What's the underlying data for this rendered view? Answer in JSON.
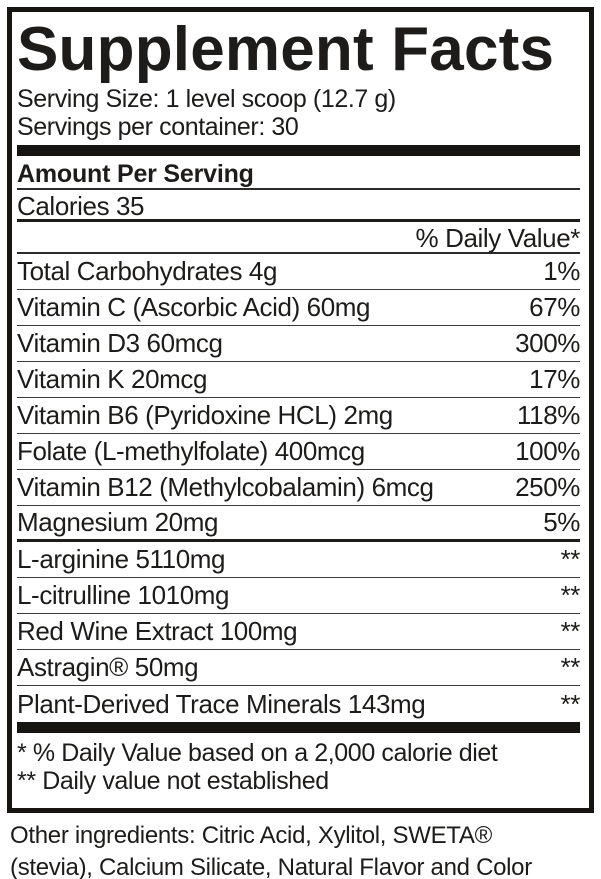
{
  "label": {
    "title": "Supplement Facts",
    "serving_size": "Serving Size: 1 level scoop (12.7 g)",
    "servings_per_container": "Servings per container: 30",
    "amount_per_serving": "Amount Per Serving",
    "calories": "Calories 35",
    "daily_value_header": "% Daily Value*",
    "rows": [
      {
        "label": "Total Carbohydrates 4g",
        "value": "1%"
      },
      {
        "label": "Vitamin C (Ascorbic Acid) 60mg",
        "value": "67%"
      },
      {
        "label": "Vitamin D3 60mcg",
        "value": "300%"
      },
      {
        "label": "Vitamin K 20mcg",
        "value": "17%"
      },
      {
        "label": "Vitamin B6 (Pyridoxine HCL) 2mg",
        "value": "118%"
      },
      {
        "label": "Folate (L-methylfolate) 400mcg",
        "value": "100%"
      },
      {
        "label": "Vitamin B12 (Methylcobalamin) 6mcg",
        "value": "250%"
      },
      {
        "label": "Magnesium 20mg",
        "value": "5%"
      },
      {
        "label": "L-arginine 5110mg",
        "value": "**"
      },
      {
        "label": "L-citrulline 1010mg",
        "value": "**"
      },
      {
        "label": "Red Wine Extract 100mg",
        "value": "**"
      },
      {
        "label": "Astragin® 50mg",
        "value": "**"
      },
      {
        "label": "Plant-Derived Trace Minerals 143mg",
        "value": "**"
      }
    ],
    "footnotes": [
      "* % Daily Value based on a 2,000 calorie diet",
      "** Daily value not established"
    ],
    "colors": {
      "ink": "#1d1c1a",
      "background": "#ffffff"
    }
  },
  "other_ingredients": {
    "line1": "Other ingredients: Citric Acid, Xylitol, SWETA®",
    "line2": "(stevia), Calcium Silicate, Natural Flavor and Color"
  }
}
